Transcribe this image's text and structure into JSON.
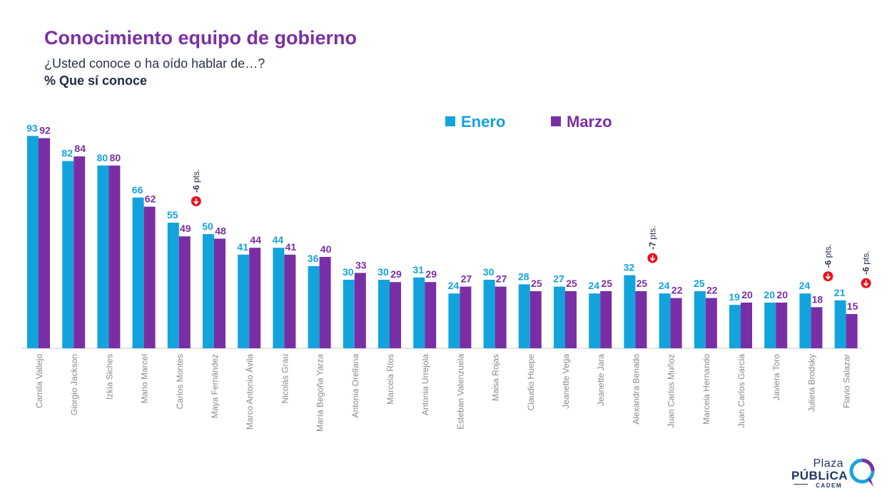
{
  "header": {
    "title": "Conocimiento equipo de gobierno",
    "subtitle": "¿Usted conoce o ha oído hablar de…?",
    "metric": "% Que sí conoce"
  },
  "logo": {
    "line1": "Plaza",
    "line2": "PÚBLiCA",
    "line3": "CADEM"
  },
  "colors": {
    "enero": "#12a3dc",
    "marzo": "#7a2ea6",
    "alert": "#e8141c",
    "axis_text": "#8a8a8a"
  },
  "chart_data": {
    "type": "bar",
    "ylim": [
      0,
      100
    ],
    "legend_position": "top-right",
    "categories": [
      "Camila Vallejo",
      "Giorgio Jackson",
      "Izkia Siches",
      "Mario Marcel",
      "Carlos Montes",
      "Maya Fernández",
      "Marco Antonio Ávila",
      "Nicolás Grau",
      "María Begoña Yarza",
      "Antonia Orellana",
      "Marcela Ríos",
      "Antonia Urrejola",
      "Esteban Valenzuela",
      "Maisa Rojas",
      "Claudio Huepe",
      "Jeanette Vega",
      "Jeanette Jara",
      "Alexandra Benado",
      "Juan Carlos Muñoz",
      "Marcela Hernando",
      "Juan Carlos García",
      "Javiera Toro",
      "Julieta Brodsky",
      "Flavio Salazar"
    ],
    "series": [
      {
        "name": "Enero",
        "values": [
          93,
          82,
          80,
          66,
          55,
          50,
          41,
          44,
          36,
          30,
          30,
          31,
          24,
          30,
          28,
          27,
          24,
          32,
          24,
          25,
          19,
          20,
          24,
          21
        ]
      },
      {
        "name": "Marzo",
        "values": [
          92,
          84,
          80,
          62,
          49,
          48,
          44,
          41,
          40,
          33,
          29,
          29,
          27,
          27,
          25,
          25,
          25,
          25,
          22,
          22,
          20,
          20,
          18,
          15
        ]
      }
    ],
    "annotations": [
      {
        "category": "Carlos Montes",
        "text": "-6 pts.",
        "icon": "down-arrow-icon"
      },
      {
        "category": "Alexandra Benado",
        "text": "-7 pts.",
        "icon": "down-arrow-icon"
      },
      {
        "category": "Julieta Brodsky",
        "text": "-6 pts.",
        "icon": "down-arrow-icon"
      },
      {
        "category": "Flavio Salazar",
        "text": "-6 pts.",
        "icon": "down-arrow-icon"
      }
    ]
  }
}
